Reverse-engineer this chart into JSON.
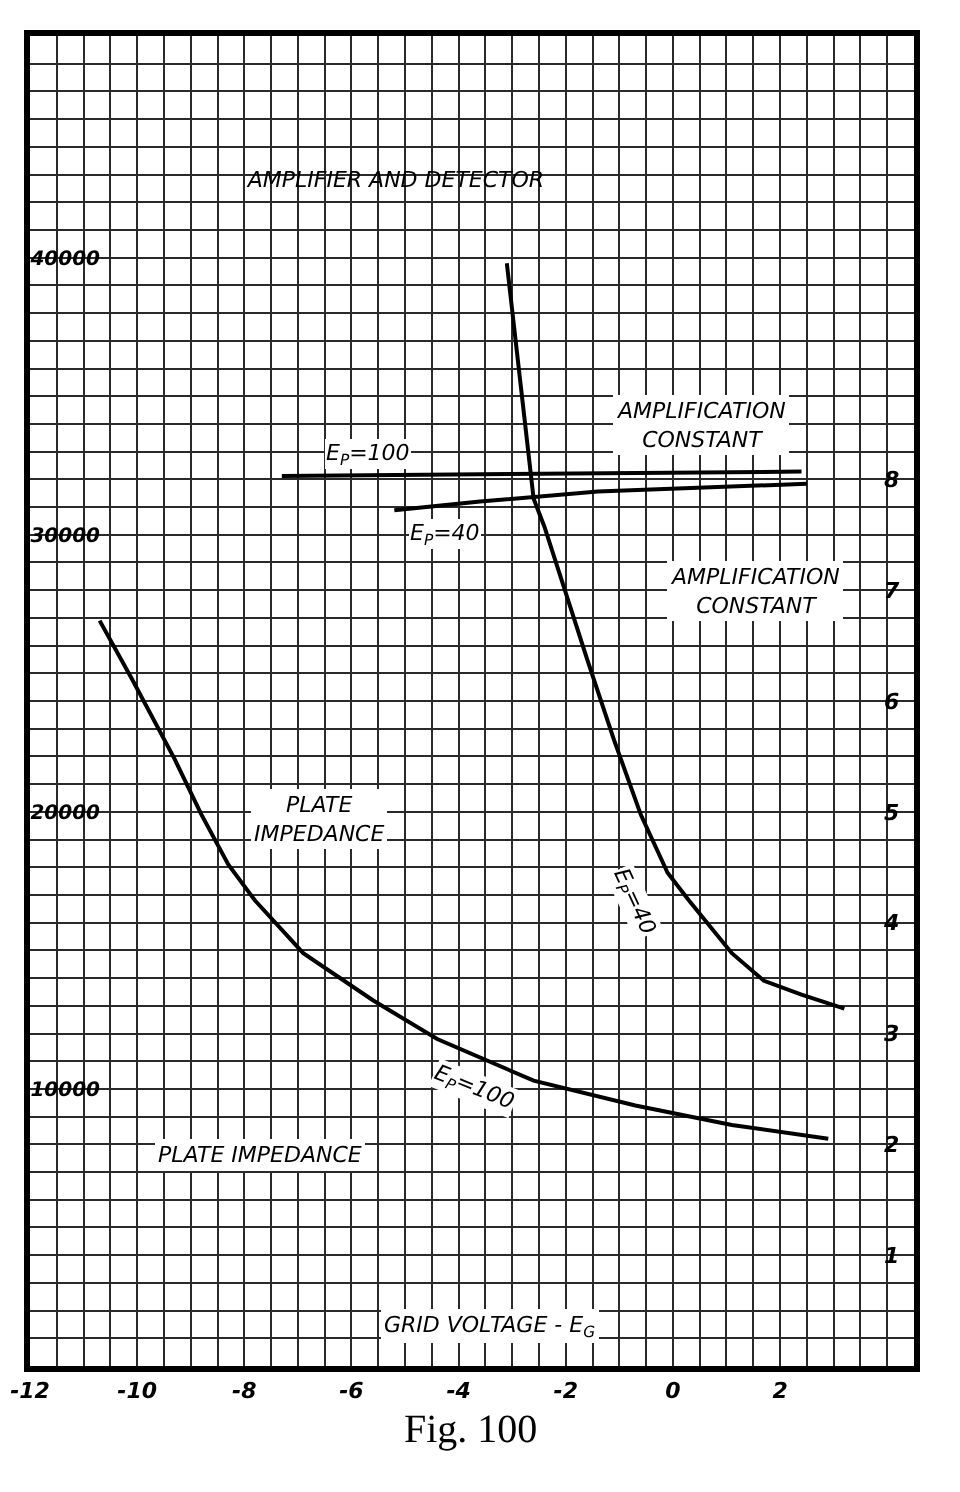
{
  "chart_data": {
    "type": "line",
    "title": "AMPLIFIER AND DETECTOR",
    "xlabel": "GRID VOLTAGE - E$_{G}$",
    "ylabel": "PLATE IMPEDANCE",
    "y2label": "AMPLIFICATION CONSTANT",
    "annotations": [
      "PLATE IMPEDANCE",
      "AMPLIFICATION CONSTANT",
      "Fig. 100"
    ],
    "series": [
      {
        "name": "E$_{P}$=100",
        "color": "#000000",
        "x": [
          -10.7,
          -10.1,
          -9.3,
          -8.8,
          -8.3,
          -7.8,
          -6.9,
          -5.6,
          -4.4,
          -2.6,
          -0.7,
          1.1,
          2.9
        ],
        "values": [
          26900,
          24800,
          21900,
          19900,
          18100,
          16800,
          14900,
          13200,
          11800,
          10300,
          9400,
          8700,
          8200
        ]
      },
      {
        "name": "E$_{P}$=40",
        "color": "#000000",
        "x": [
          -3.1,
          -2.6,
          -2.4,
          -2.0,
          -1.6,
          -1.1,
          -0.6,
          -0.1,
          0.3,
          1.1,
          1.7,
          2.4,
          3.2
        ],
        "values": [
          39800,
          31300,
          30300,
          27900,
          25500,
          22600,
          19900,
          17800,
          16800,
          14900,
          13900,
          13400,
          12900
        ]
      },
      {
        "name": "E$_{P}$=100",
        "color": "#000000",
        "axis": "y2",
        "x": [
          -7.3,
          2.4
        ],
        "values": [
          8.03,
          8.07
        ]
      },
      {
        "name": "E$_{P}$=40",
        "color": "#000000",
        "axis": "y2",
        "x": [
          -5.2,
          -3.6,
          -1.4,
          2.5
        ],
        "values": [
          7.72,
          7.8,
          7.89,
          7.96
        ]
      }
    ],
    "xlim": [
      -12,
      4.5
    ],
    "xticks": [
      -12,
      {
        "value": -11.5,
        "label": null
      },
      {
        "value": -11,
        "label": null
      },
      {
        "value": -10.5,
        "label": null
      },
      -10,
      {
        "value": -9.5,
        "label": null
      },
      {
        "value": -9,
        "label": null
      },
      {
        "value": -8.5,
        "label": null
      },
      -8,
      {
        "value": -7.5,
        "label": null
      },
      {
        "value": -7,
        "label": null
      },
      {
        "value": -6.5,
        "label": null
      },
      -6,
      {
        "value": -5.5,
        "label": null
      },
      {
        "value": -5,
        "label": null
      },
      {
        "value": -4.5,
        "label": null
      },
      -4,
      {
        "value": -3.5,
        "label": null
      },
      {
        "value": -3,
        "label": null
      },
      {
        "value": -2.5,
        "label": null
      },
      -2,
      {
        "value": -1.5,
        "label": null
      },
      {
        "value": -1,
        "label": null
      },
      {
        "value": -0.5,
        "label": null
      },
      0,
      {
        "value": 0.5,
        "label": null
      },
      {
        "value": 1,
        "label": null
      },
      {
        "value": 1.5,
        "label": null
      },
      2,
      {
        "value": 2.5,
        "label": null
      },
      {
        "value": 3,
        "label": null
      },
      {
        "value": 3.5,
        "label": null
      },
      {
        "value": 4,
        "label": null
      }
    ],
    "ylim": [
      0,
      48000
    ],
    "yticks": [
      {
        "value": 1000,
        "label": null
      },
      {
        "value": 2000,
        "label": null
      },
      {
        "value": 3000,
        "label": null
      },
      {
        "value": 4000,
        "label": null
      },
      {
        "value": 5000,
        "label": null
      },
      {
        "value": 6000,
        "label": null
      },
      {
        "value": 7000,
        "label": null
      },
      {
        "value": 8000,
        "label": null
      },
      {
        "value": 9000,
        "label": null
      },
      10000,
      {
        "value": 11000,
        "label": null
      },
      {
        "value": 12000,
        "label": null
      },
      {
        "value": 13000,
        "label": null
      },
      {
        "value": 14000,
        "label": null
      },
      {
        "value": 15000,
        "label": null
      },
      {
        "value": 16000,
        "label": null
      },
      {
        "value": 17000,
        "label": null
      },
      {
        "value": 18000,
        "label": null
      },
      {
        "value": 19000,
        "label": null
      },
      20000,
      {
        "value": 21000,
        "label": null
      },
      {
        "value": 22000,
        "label": null
      },
      {
        "value": 23000,
        "label": null
      },
      {
        "value": 24000,
        "label": null
      },
      {
        "value": 25000,
        "label": null
      },
      {
        "value": 26000,
        "label": null
      },
      {
        "value": 27000,
        "label": null
      },
      {
        "value": 28000,
        "label": null
      },
      {
        "value": 29000,
        "label": null
      },
      30000,
      {
        "value": 31000,
        "label": null
      },
      {
        "value": 32000,
        "label": null
      },
      {
        "value": 33000,
        "label": null
      },
      {
        "value": 34000,
        "label": null
      },
      {
        "value": 35000,
        "label": null
      },
      {
        "value": 36000,
        "label": null
      },
      {
        "value": 37000,
        "label": null
      },
      {
        "value": 38000,
        "label": null
      },
      {
        "value": 39000,
        "label": null
      },
      40000,
      {
        "value": 41000,
        "label": null
      },
      {
        "value": 42000,
        "label": null
      },
      {
        "value": 43000,
        "label": null
      },
      {
        "value": 44000,
        "label": null
      },
      {
        "value": 45000,
        "label": null
      },
      {
        "value": 46000,
        "label": null
      },
      {
        "value": 47000,
        "label": null
      }
    ],
    "y2lim": [
      0,
      12
    ],
    "y2ticks": [
      1,
      2,
      3,
      4,
      5,
      6,
      7,
      8
    ],
    "grid": true
  }
}
